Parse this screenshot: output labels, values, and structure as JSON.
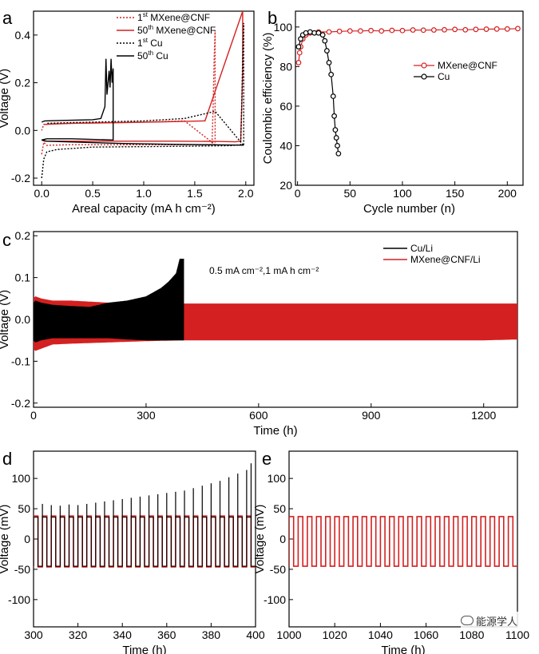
{
  "panel_letters": [
    "a",
    "b",
    "c",
    "d",
    "e"
  ],
  "watermark": {
    "icon": "chat-bubble-icon",
    "text": "能源学人"
  },
  "colors": {
    "red": "#d42020",
    "black": "#000000"
  },
  "chart_data": [
    {
      "panel": "a",
      "type": "line",
      "xlabel": "Areal capacity (mA h cm⁻²)",
      "ylabel": "Voltage (V)",
      "xlim": [
        -0.08,
        2.08
      ],
      "ylim": [
        -0.23,
        0.5
      ],
      "xticks": [
        0.0,
        0.5,
        1.0,
        1.5,
        2.0
      ],
      "xtick_labels": [
        "0.0",
        "0.5",
        "1.0",
        "1.5",
        "2.0"
      ],
      "yticks": [
        -0.2,
        0.0,
        0.2,
        0.4
      ],
      "ytick_labels": [
        "-0.2",
        "0.0",
        "0.2",
        "0.4"
      ],
      "legend": {
        "position": "top-right",
        "entries": [
          {
            "sup": "st",
            "pre": "1",
            "post": " MXene@CNF"
          },
          {
            "sup": "th",
            "pre": "50",
            "post": " MXene@CNF"
          },
          {
            "sup": "st",
            "pre": "1",
            "post": " Cu"
          },
          {
            "sup": "th",
            "pre": "50",
            "post": " Cu"
          }
        ]
      },
      "series": [
        {
          "color": "#d42020",
          "dash": "dot",
          "x": [
            0.0,
            0.02,
            0.05,
            0.1,
            0.3,
            0.6,
            1.0,
            1.3,
            1.5,
            1.6,
            1.65,
            1.67,
            1.68,
            1.69,
            1.7,
            1.7,
            1.4,
            1.0,
            0.6,
            0.3,
            0.1,
            0.02,
            0.0
          ],
          "y": [
            -0.1,
            -0.05,
            -0.063,
            -0.062,
            -0.06,
            -0.06,
            -0.06,
            -0.06,
            -0.06,
            -0.061,
            -0.06,
            -0.05,
            0.1,
            0.3,
            0.42,
            -0.06,
            0.04,
            0.035,
            0.032,
            0.03,
            0.028,
            0.025,
            0.0
          ]
        },
        {
          "color": "#d42020",
          "dash": "solid",
          "x": [
            0.0,
            0.03,
            0.3,
            0.8,
            1.3,
            1.7,
            1.9,
            1.95,
            1.96,
            1.97,
            1.97,
            1.6,
            1.2,
            0.8,
            0.3,
            0.02
          ],
          "y": [
            -0.04,
            -0.045,
            -0.045,
            -0.045,
            -0.045,
            -0.046,
            -0.048,
            -0.045,
            0.1,
            0.25,
            0.5,
            0.04,
            0.036,
            0.033,
            0.03,
            0.025
          ]
        },
        {
          "color": "#000000",
          "dash": "dot",
          "x": [
            0.0,
            0.02,
            0.05,
            0.15,
            0.5,
            1.0,
            1.5,
            1.85,
            1.95,
            1.96,
            1.97,
            1.98,
            1.98,
            1.7,
            1.4,
            1.0,
            0.6,
            0.2,
            0.05
          ],
          "y": [
            -0.2,
            -0.12,
            -0.09,
            -0.08,
            -0.07,
            -0.068,
            -0.066,
            -0.064,
            -0.06,
            0.1,
            0.3,
            0.45,
            -0.064,
            0.08,
            0.05,
            0.04,
            0.036,
            0.032,
            0.03
          ]
        },
        {
          "color": "#000000",
          "dash": "solid",
          "x": [
            0.0,
            0.03,
            0.2,
            0.5,
            0.58,
            0.62,
            0.63,
            0.64,
            0.65,
            0.66,
            0.67,
            0.68,
            0.69,
            0.7,
            0.7,
            0.3,
            0.05,
            0.0,
            0.05,
            0.4,
            0.8,
            1.2,
            1.6,
            1.98
          ],
          "y": [
            0.035,
            0.04,
            0.042,
            0.045,
            0.05,
            0.1,
            0.3,
            0.15,
            0.2,
            0.25,
            0.18,
            0.3,
            0.2,
            0.26,
            -0.04,
            -0.035,
            -0.035,
            -0.04,
            -0.045,
            -0.05,
            -0.055,
            -0.058,
            -0.06,
            -0.062
          ]
        }
      ]
    },
    {
      "panel": "b",
      "type": "line",
      "xlabel": "Cycle number (n)",
      "ylabel": "Coulombic efficiency (%)",
      "xlim": [
        -2,
        215
      ],
      "ylim": [
        20,
        108
      ],
      "xticks": [
        0,
        50,
        100,
        150,
        200
      ],
      "yticks": [
        20,
        40,
        60,
        80,
        100
      ],
      "legend": {
        "position": "center-right",
        "entries": [
          "MXene@CNF",
          "Cu"
        ]
      },
      "series": [
        {
          "name": "MXene@CNF",
          "color": "#d42020",
          "marker": "open-circle",
          "x": [
            1,
            2,
            3,
            5,
            8,
            12,
            20,
            30,
            40,
            50,
            60,
            70,
            80,
            90,
            100,
            110,
            120,
            130,
            140,
            150,
            160,
            170,
            180,
            190,
            200,
            210
          ],
          "y": [
            82,
            87,
            90,
            94,
            96,
            97,
            97.5,
            97.5,
            97.8,
            98,
            98,
            98.2,
            98,
            98.3,
            98.2,
            98.5,
            98.4,
            98.5,
            98.6,
            98.8,
            98.6,
            98.8,
            98.9,
            99,
            99,
            99.2
          ]
        },
        {
          "name": "Cu",
          "color": "#000000",
          "marker": "open-circle",
          "x": [
            1,
            3,
            5,
            8,
            12,
            16,
            20,
            24,
            26,
            28,
            30,
            32,
            34,
            35,
            36,
            37,
            38,
            39
          ],
          "y": [
            90,
            94,
            96,
            97,
            97.5,
            97,
            97,
            96,
            93,
            88,
            82,
            76,
            65,
            55,
            48,
            44,
            40,
            36
          ]
        }
      ]
    },
    {
      "panel": "c",
      "type": "line",
      "xlabel": "Time (h)",
      "ylabel": "Voltage (V)",
      "xlim": [
        0,
        1290
      ],
      "ylim": [
        -0.21,
        0.21
      ],
      "xticks": [
        0,
        300,
        600,
        900,
        1200
      ],
      "yticks": [
        -0.2,
        -0.1,
        0.0,
        0.1,
        0.2
      ],
      "ytick_labels": [
        "-0.2",
        "-0.1",
        "0.0",
        "0.1",
        "0.2"
      ],
      "annotation": "0.5 mA cm⁻²,1 mA h cm⁻²",
      "legend": {
        "position": "top-right",
        "entries": [
          "Cu/Li",
          "MXene@CNF/Li"
        ]
      },
      "series": [
        {
          "name": "MXene@CNF/Li",
          "color": "#d42020",
          "band": true,
          "x": [
            0,
            5,
            20,
            50,
            100,
            200,
            300,
            400,
            600,
            900,
            1200,
            1290
          ],
          "upper": [
            0.05,
            0.055,
            0.05,
            0.045,
            0.045,
            0.04,
            0.04,
            0.038,
            0.038,
            0.038,
            0.038,
            0.038
          ],
          "lower": [
            -0.07,
            -0.075,
            -0.07,
            -0.06,
            -0.058,
            -0.055,
            -0.052,
            -0.05,
            -0.05,
            -0.05,
            -0.05,
            -0.048
          ]
        },
        {
          "name": "Cu/Li",
          "color": "#000000",
          "band": true,
          "x": [
            0,
            5,
            20,
            50,
            100,
            150,
            200,
            250,
            300,
            320,
            340,
            360,
            380,
            390,
            400
          ],
          "upper": [
            0.04,
            0.045,
            0.04,
            0.035,
            0.032,
            0.03,
            0.04,
            0.045,
            0.055,
            0.065,
            0.075,
            0.09,
            0.11,
            0.145,
            0.145
          ],
          "lower": [
            -0.05,
            -0.055,
            -0.05,
            -0.045,
            -0.045,
            -0.045,
            -0.045,
            -0.048,
            -0.05,
            -0.05,
            -0.05,
            -0.05,
            -0.05,
            -0.05,
            -0.05
          ]
        }
      ]
    },
    {
      "panel": "d",
      "type": "line",
      "xlabel": "Time (h)",
      "ylabel": "Voltage (mV)",
      "xlim": [
        300,
        400
      ],
      "ylim": [
        -145,
        145
      ],
      "xticks": [
        300,
        320,
        340,
        360,
        380,
        400
      ],
      "yticks": [
        -100,
        -50,
        0,
        50,
        100
      ],
      "series": [
        {
          "color": "#d42020",
          "waveform": "square",
          "start": 300,
          "period": 4,
          "high": 38,
          "low": -46
        },
        {
          "color": "#000000",
          "waveform": "square-spike",
          "start": 300,
          "period": 4,
          "high": 36,
          "low": -45,
          "spike_times": [
            304,
            308,
            312,
            316,
            320,
            324,
            328,
            332,
            336,
            340,
            344,
            348,
            352,
            356,
            360,
            364,
            368,
            372,
            376,
            380,
            384,
            388,
            392,
            396,
            398
          ],
          "spike_values": [
            58,
            56,
            55,
            57,
            56,
            58,
            60,
            62,
            64,
            66,
            68,
            70,
            72,
            74,
            76,
            78,
            80,
            84,
            88,
            92,
            96,
            102,
            108,
            114,
            125
          ]
        }
      ]
    },
    {
      "panel": "e",
      "type": "line",
      "xlabel": "Time (h)",
      "ylabel": "Voltage (mV)",
      "xlim": [
        1000,
        1100
      ],
      "ylim": [
        -145,
        145
      ],
      "xticks": [
        1000,
        1020,
        1040,
        1060,
        1080,
        1100
      ],
      "yticks": [
        -100,
        -50,
        0,
        50,
        100
      ],
      "series": [
        {
          "color": "#d42020",
          "waveform": "square",
          "start": 1000,
          "period": 4,
          "high": 37,
          "low": -45
        }
      ]
    }
  ]
}
